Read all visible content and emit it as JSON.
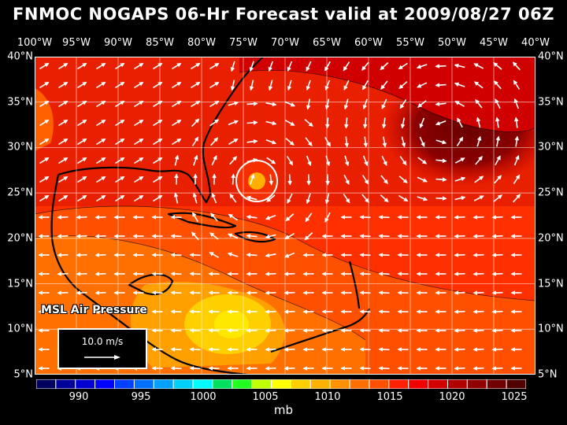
{
  "title": "FNMOC NOGAPS 06-Hr Forecast valid at 2009/08/27 06Z",
  "longitude_labels": [
    "100°W",
    "95°W",
    "90°W",
    "85°W",
    "80°W",
    "75°W",
    "70°W",
    "65°W",
    "60°W",
    "55°W",
    "50°W",
    "45°W",
    "40°W"
  ],
  "latitude_labels": [
    "40°N",
    "35°N",
    "30°N",
    "25°N",
    "20°N",
    "15°N",
    "10°N",
    "5°N"
  ],
  "field_label": "MSL Air Pressure",
  "vector_scale_label": "10.0 m/s",
  "colorbar": {
    "labels": [
      "990",
      "995",
      "1000",
      "1005",
      "1010",
      "1015",
      "1020",
      "1025"
    ],
    "units": "mb",
    "colors": [
      "#000060",
      "#00009a",
      "#0000d0",
      "#0000ff",
      "#0040ff",
      "#0070ff",
      "#00a0ff",
      "#00d0ff",
      "#00ffff",
      "#00e060",
      "#20ff20",
      "#c0ff00",
      "#ffff00",
      "#ffd000",
      "#ffb000",
      "#ff9000",
      "#ff7000",
      "#ff5000",
      "#ff2000",
      "#f00000",
      "#d00000",
      "#b00000",
      "#900000",
      "#700000",
      "#500000"
    ]
  },
  "colors": {
    "background": "#000000",
    "coastline": "#000000",
    "wind_vectors": "#ffffff",
    "gridlines": "#ffffff"
  }
}
